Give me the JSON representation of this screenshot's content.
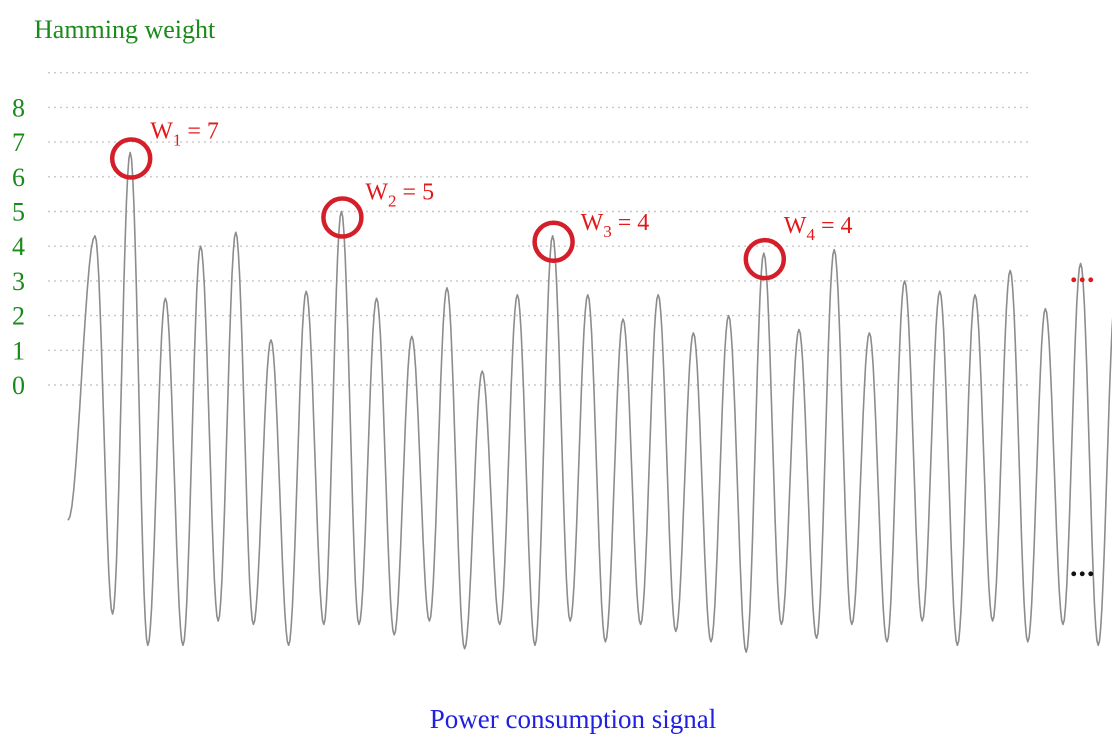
{
  "chart_data": {
    "type": "line",
    "title": "Hamming weight",
    "xlabel": "Power consumption signal",
    "ylabel": "Hamming weight",
    "y_ticks": [
      "0",
      "1",
      "2",
      "3",
      "4",
      "5",
      "6",
      "7",
      "8"
    ],
    "ylim": [
      0,
      8
    ],
    "grid": true,
    "annotations": [
      {
        "sub": "1",
        "value": 7
      },
      {
        "sub": "2",
        "value": 5
      },
      {
        "sub": "3",
        "value": 4
      },
      {
        "sub": "4",
        "value": 4
      }
    ],
    "annotation_labels": [
      {
        "base": "W",
        "sub": "1",
        "rest": " = 7"
      },
      {
        "base": "W",
        "sub": "2",
        "rest": " = 5"
      },
      {
        "base": "W",
        "sub": "3",
        "rest": " = 4"
      },
      {
        "base": "W",
        "sub": "4",
        "rest": " = 4"
      }
    ],
    "ellipsis_top": "...",
    "ellipsis_bottom": "...",
    "signal_peaks": [
      4.3,
      6.7,
      2.5,
      4.0,
      4.4,
      1.3,
      2.7,
      5.0,
      2.5,
      1.4,
      2.8,
      0.4,
      2.6,
      4.3,
      2.6,
      1.9,
      2.6,
      1.5,
      2.0,
      3.8,
      1.6,
      3.9,
      1.5,
      3.0,
      2.7,
      2.6,
      3.3,
      2.2,
      3.5,
      2.7
    ],
    "signal_troughs": [
      -6.6,
      -7.5,
      -7.5,
      -6.8,
      -6.9,
      -7.5,
      -6.9,
      -6.9,
      -7.2,
      -6.8,
      -7.6,
      -6.9,
      -7.5,
      -6.8,
      -7.4,
      -6.9,
      -7.1,
      -7.4,
      -7.7,
      -6.9,
      -7.3,
      -6.9,
      -7.4,
      -6.8,
      -7.5,
      -6.8,
      -7.4,
      -6.9,
      -7.5
    ],
    "colors": {
      "tick_labels": "#1a8a1a",
      "title": "#1a8a1a",
      "annotations": "#e01a1a",
      "circles": "#d41f2a",
      "signal": "#8c8c8c",
      "grid": "#c8c8c8",
      "xlabel": "#2020e0",
      "ellipsis_top": "#e01a1a",
      "ellipsis_bottom": "#111111"
    }
  }
}
